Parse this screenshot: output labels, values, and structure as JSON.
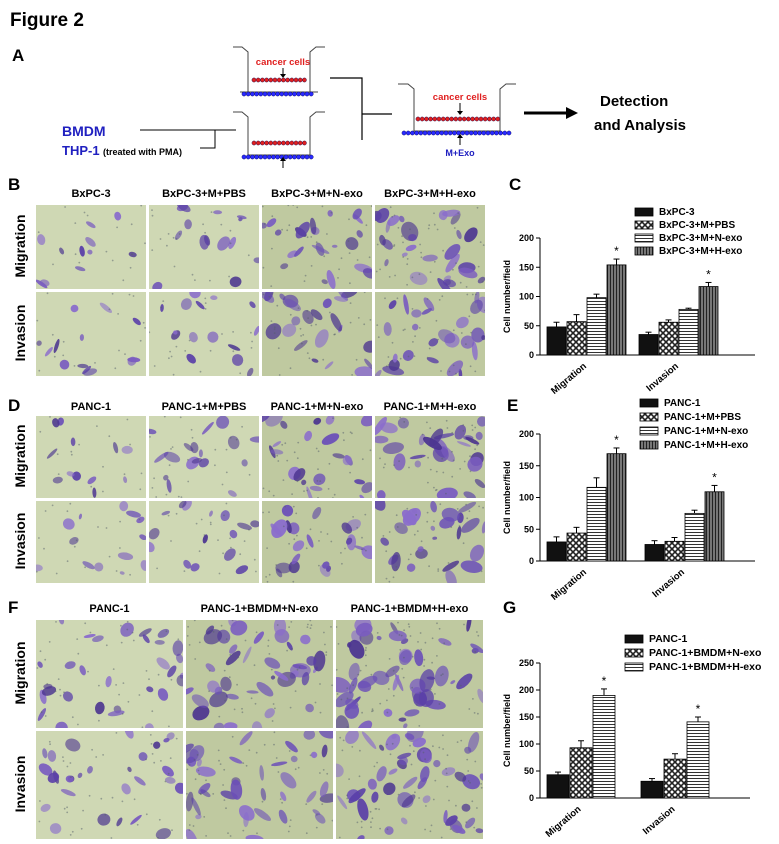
{
  "figure_title": "Figure 2",
  "panels": {
    "A": {
      "label": "A",
      "cancer_cells": "cancer cells",
      "m_exo": "M+Exo",
      "bmdm": "BMDM",
      "thp1": "THP-1",
      "thp1_note": "(treated with PMA)",
      "detection_line1": "Detection",
      "detection_line2": "and Analysis"
    },
    "B": {
      "label": "B",
      "columns": [
        "BxPC-3",
        "BxPC-3+M+PBS",
        "BxPC-3+M+N-exo",
        "BxPC-3+M+H-exo"
      ],
      "rows": [
        "Migration",
        "Invasion"
      ]
    },
    "C": {
      "label": "C"
    },
    "D": {
      "label": "D",
      "columns": [
        "PANC-1",
        "PANC-1+M+PBS",
        "PANC-1+M+N-exo",
        "PANC-1+M+H-exo"
      ],
      "rows": [
        "Migration",
        "Invasion"
      ]
    },
    "E": {
      "label": "E"
    },
    "F": {
      "label": "F",
      "columns": [
        "PANC-1",
        "PANC-1+BMDM+N-exo",
        "PANC-1+BMDM+H-exo"
      ],
      "rows": [
        "Migration",
        "Invasion"
      ]
    },
    "G": {
      "label": "G"
    }
  },
  "colors": {
    "stain": "#6a4fb0",
    "background": "#c9d4a8",
    "accent_red": "#e02020",
    "accent_blue": "#2020c0"
  },
  "chart_data": [
    {
      "id": "C",
      "type": "bar",
      "ylabel": "Cell number/field",
      "ylim": [
        0,
        200
      ],
      "yticks": [
        0,
        50,
        100,
        150,
        200
      ],
      "categories": [
        "Migration",
        "Invasion"
      ],
      "series": [
        {
          "name": "BxPC-3",
          "pattern": "solid",
          "values": [
            48,
            35
          ],
          "errors": [
            8,
            4
          ]
        },
        {
          "name": "BxPC-3+M+PBS",
          "pattern": "check",
          "values": [
            57,
            56
          ],
          "errors": [
            12,
            4
          ]
        },
        {
          "name": "BxPC-3+M+N-exo",
          "pattern": "hlines",
          "values": [
            98,
            78
          ],
          "errors": [
            6,
            2
          ]
        },
        {
          "name": "BxPC-3+M+H-exo",
          "pattern": "vlines",
          "values": [
            154,
            117
          ],
          "errors": [
            10,
            7
          ]
        }
      ],
      "annotations": [
        {
          "series": 3,
          "category": 0,
          "text": "*"
        },
        {
          "series": 3,
          "category": 1,
          "text": "*"
        }
      ]
    },
    {
      "id": "E",
      "type": "bar",
      "ylabel": "Cell number/field",
      "ylim": [
        0,
        200
      ],
      "yticks": [
        0,
        50,
        100,
        150,
        200
      ],
      "categories": [
        "Migration",
        "Invasion"
      ],
      "series": [
        {
          "name": "PANC-1",
          "pattern": "solid",
          "values": [
            30,
            26
          ],
          "errors": [
            8,
            6
          ]
        },
        {
          "name": "PANC-1+M+PBS",
          "pattern": "check",
          "values": [
            44,
            31
          ],
          "errors": [
            9,
            6
          ]
        },
        {
          "name": "PANC-1+M+N-exo",
          "pattern": "hlines",
          "values": [
            116,
            75
          ],
          "errors": [
            15,
            5
          ]
        },
        {
          "name": "PANC-1+M+H-exo",
          "pattern": "vlines",
          "values": [
            169,
            109
          ],
          "errors": [
            9,
            10
          ]
        }
      ],
      "annotations": [
        {
          "series": 3,
          "category": 0,
          "text": "*"
        },
        {
          "series": 3,
          "category": 1,
          "text": "*"
        }
      ]
    },
    {
      "id": "G",
      "type": "bar",
      "ylabel": "Cell number/field",
      "ylim": [
        0,
        250
      ],
      "yticks": [
        0,
        50,
        100,
        150,
        200,
        250
      ],
      "categories": [
        "Migration",
        "Invasion"
      ],
      "series": [
        {
          "name": "PANC-1",
          "pattern": "solid",
          "values": [
            43,
            31
          ],
          "errors": [
            5,
            5
          ]
        },
        {
          "name": "PANC-1+BMDM+N-exo",
          "pattern": "check",
          "values": [
            93,
            72
          ],
          "errors": [
            13,
            10
          ]
        },
        {
          "name": "PANC-1+BMDM+H-exo",
          "pattern": "hlines",
          "values": [
            190,
            141
          ],
          "errors": [
            12,
            9
          ]
        }
      ],
      "annotations": [
        {
          "series": 2,
          "category": 0,
          "text": "*"
        },
        {
          "series": 2,
          "category": 1,
          "text": "*"
        }
      ]
    }
  ]
}
